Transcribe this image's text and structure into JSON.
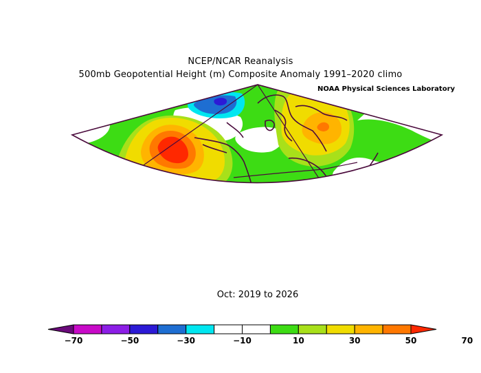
{
  "header": {
    "title": "NCEP/NCAR Reanalysis",
    "subtitle": "500mb Geopotential Height (m) Composite Anomaly 1991–2020 climo",
    "credit": "NOAA Physical Sciences Laboratory"
  },
  "period": "Oct: 2019 to 2026",
  "colorbar": {
    "labels": [
      "−70",
      "−50",
      "−30",
      "−10",
      "10",
      "30",
      "50",
      "70"
    ],
    "colors": [
      "#6a0a7a",
      "#c80ac8",
      "#8c1ee6",
      "#2c1ad6",
      "#1e6ed2",
      "#00e6f0",
      "#ffffff",
      "#ffffff",
      "#3ddc14",
      "#a8e01a",
      "#f0dc00",
      "#ffb400",
      "#ff7800",
      "#ff2800"
    ]
  },
  "colors": {
    "land_outline": "#4a0a3c",
    "frame": "#4a0a3c",
    "background_anomaly": "#3ddc14"
  }
}
